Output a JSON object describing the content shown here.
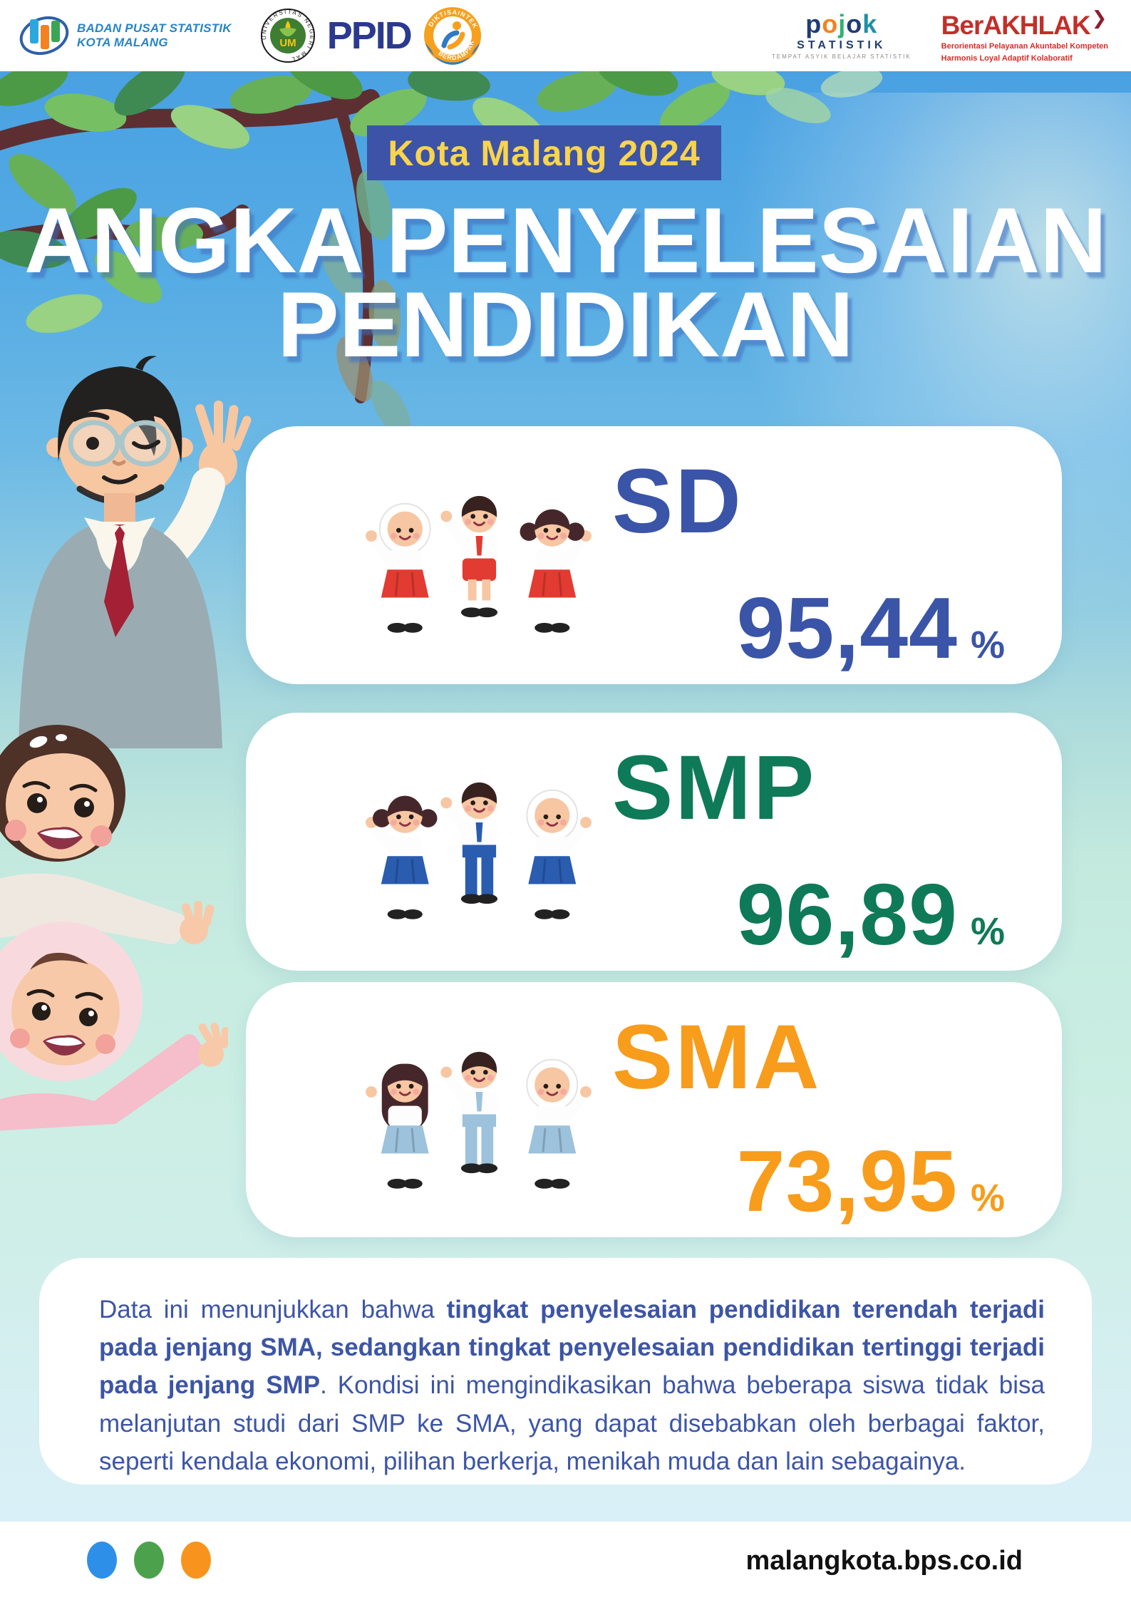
{
  "header": {
    "bps_line1": "BADAN PUSAT STATISTIK",
    "bps_line2": "KOTA MALANG",
    "um_label": "UNIVERSITAS NEGERI MALANG",
    "ppid_text": "PPID",
    "diktisaintek_top": "DIKTISAINTEK",
    "diktisaintek_bottom": "BERDAMPAK",
    "pojok_word": "pojok",
    "pojok_colors": [
      "#1f3c73",
      "#f58220",
      "#2fb273",
      "#1f3c73",
      "#1f8fa8"
    ],
    "pojok_sub": "STATISTIK",
    "pojok_tagline": "TEMPAT ASYIK BELAJAR STATISTIK",
    "berakhlak_title": "BerAKHLAK",
    "berakhlak_arrow": "❯",
    "berakhlak_line1": "Berorientasi Pelayanan Akuntabel Kompeten",
    "berakhlak_line2": "Harmonis Loyal Adaptif Kolaboratif"
  },
  "badge": "Kota Malang 2024",
  "title": {
    "line1": "ANGKA PENYELESAIAN",
    "line2": "PENDIDIKAN"
  },
  "cards": [
    {
      "level": "SD",
      "value": "95,44",
      "unit": "%",
      "color": "#3a54a7",
      "uniform_color": "#e23b31"
    },
    {
      "level": "SMP",
      "value": "96,89",
      "unit": "%",
      "color": "#0f7a57",
      "uniform_color": "#2a5cb0"
    },
    {
      "level": "SMA",
      "value": "73,95",
      "unit": "%",
      "color": "#f89c1c",
      "uniform_color": "#9cc2dc"
    }
  ],
  "chart_data": {
    "type": "bar",
    "title": "Angka Penyelesaian Pendidikan Kota Malang 2024",
    "categories": [
      "SD",
      "SMP",
      "SMA"
    ],
    "values": [
      95.44,
      96.89,
      73.95
    ],
    "unit": "%"
  },
  "paragraph": {
    "seg_normal1": "Data ini menunjukkan bahwa ",
    "seg_bold": "tingkat penyelesaian pendidikan terendah terjadi pada jenjang SMA, sedangkan  tingkat penyelesaian pendidikan tertinggi terjadi pada jenjang SMP",
    "seg_normal2": ". Kondisi ini mengindikasikan bahwa beberapa siswa tidak bisa melanjutan studi dari SMP ke SMA, yang dapat disebabkan oleh berbagai faktor, seperti kendala ekonomi, pilihan berkerja, menikah muda dan lain sebagainya."
  },
  "footer": {
    "url": "malangkota.bps.co.id",
    "dot_colors": [
      "#2e8fe8",
      "#4ca24c",
      "#f8941d"
    ]
  }
}
